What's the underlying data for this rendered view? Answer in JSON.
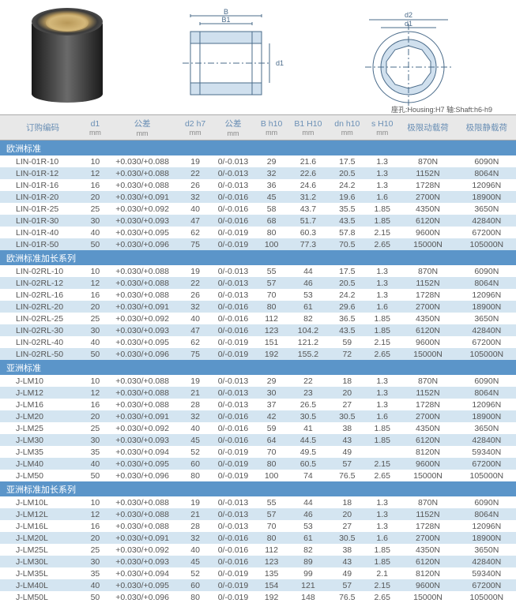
{
  "tolerance_note": "座孔:Housing:H7  轴:Shaft:h6-h9",
  "columns": [
    {
      "label": "订购编码",
      "unit": ""
    },
    {
      "label": "d1",
      "unit": "mm"
    },
    {
      "label": "公差",
      "unit": "mm"
    },
    {
      "label": "d2 h7",
      "unit": "mm"
    },
    {
      "label": "公差",
      "unit": "mm"
    },
    {
      "label": "B h10",
      "unit": "mm"
    },
    {
      "label": "B1 H10",
      "unit": "mm"
    },
    {
      "label": "dn h10",
      "unit": "mm"
    },
    {
      "label": "s H10",
      "unit": "mm"
    },
    {
      "label": "极限动载荷",
      "unit": ""
    },
    {
      "label": "极限静载荷",
      "unit": ""
    }
  ],
  "sections": [
    {
      "title": "欧洲标准",
      "rows": [
        [
          "LIN-01R-10",
          "10",
          "+0.030/+0.088",
          "19",
          "0/-0.013",
          "29",
          "21.6",
          "17.5",
          "1.3",
          "870N",
          "6090N"
        ],
        [
          "LIN-01R-12",
          "12",
          "+0.030/+0.088",
          "22",
          "0/-0.013",
          "32",
          "22.6",
          "20.5",
          "1.3",
          "1152N",
          "8064N"
        ],
        [
          "LIN-01R-16",
          "16",
          "+0.030/+0.088",
          "26",
          "0/-0.013",
          "36",
          "24.6",
          "24.2",
          "1.3",
          "1728N",
          "12096N"
        ],
        [
          "LIN-01R-20",
          "20",
          "+0.030/+0.091",
          "32",
          "0/-0.016",
          "45",
          "31.2",
          "19.6",
          "1.6",
          "2700N",
          "18900N"
        ],
        [
          "LIN-01R-25",
          "25",
          "+0.030/+0.092",
          "40",
          "0/-0.016",
          "58",
          "43.7",
          "35.5",
          "1.85",
          "4350N",
          "3650N"
        ],
        [
          "LIN-01R-30",
          "30",
          "+0.030/+0.093",
          "47",
          "0/-0.016",
          "68",
          "51.7",
          "43.5",
          "1.85",
          "6120N",
          "42840N"
        ],
        [
          "LIN-01R-40",
          "40",
          "+0.030/+0.095",
          "62",
          "0/-0.019",
          "80",
          "60.3",
          "57.8",
          "2.15",
          "9600N",
          "67200N"
        ],
        [
          "LIN-01R-50",
          "50",
          "+0.030/+0.096",
          "75",
          "0/-0.019",
          "100",
          "77.3",
          "70.5",
          "2.65",
          "15000N",
          "105000N"
        ]
      ]
    },
    {
      "title": "欧洲标准加长系列",
      "rows": [
        [
          "LIN-02RL-10",
          "10",
          "+0.030/+0.088",
          "19",
          "0/-0.013",
          "55",
          "44",
          "17.5",
          "1.3",
          "870N",
          "6090N"
        ],
        [
          "LIN-02RL-12",
          "12",
          "+0.030/+0.088",
          "22",
          "0/-0.013",
          "57",
          "46",
          "20.5",
          "1.3",
          "1152N",
          "8064N"
        ],
        [
          "LIN-02RL-16",
          "16",
          "+0.030/+0.088",
          "26",
          "0/-0.013",
          "70",
          "53",
          "24.2",
          "1.3",
          "1728N",
          "12096N"
        ],
        [
          "LIN-02RL-20",
          "20",
          "+0.030/+0.091",
          "32",
          "0/-0.016",
          "80",
          "61",
          "29.6",
          "1.6",
          "2700N",
          "18900N"
        ],
        [
          "LIN-02RL-25",
          "25",
          "+0.030/+0.092",
          "40",
          "0/-0.016",
          "112",
          "82",
          "36.5",
          "1.85",
          "4350N",
          "3650N"
        ],
        [
          "LIN-02RL-30",
          "30",
          "+0.030/+0.093",
          "47",
          "0/-0.016",
          "123",
          "104.2",
          "43.5",
          "1.85",
          "6120N",
          "42840N"
        ],
        [
          "LIN-02RL-40",
          "40",
          "+0.030/+0.095",
          "62",
          "0/-0.019",
          "151",
          "121.2",
          "59",
          "2.15",
          "9600N",
          "67200N"
        ],
        [
          "LIN-02RL-50",
          "50",
          "+0.030/+0.096",
          "75",
          "0/-0.019",
          "192",
          "155.2",
          "72",
          "2.65",
          "15000N",
          "105000N"
        ]
      ]
    },
    {
      "title": "亚洲标准",
      "rows": [
        [
          "J-LM10",
          "10",
          "+0.030/+0.088",
          "19",
          "0/-0.013",
          "29",
          "22",
          "18",
          "1.3",
          "870N",
          "6090N"
        ],
        [
          "J-LM12",
          "12",
          "+0.030/+0.088",
          "21",
          "0/-0.013",
          "30",
          "23",
          "20",
          "1.3",
          "1152N",
          "8064N"
        ],
        [
          "J-LM16",
          "16",
          "+0.030/+0.088",
          "28",
          "0/-0.013",
          "37",
          "26.5",
          "27",
          "1.3",
          "1728N",
          "12096N"
        ],
        [
          "J-LM20",
          "20",
          "+0.030/+0.091",
          "32",
          "0/-0.016",
          "42",
          "30.5",
          "30.5",
          "1.6",
          "2700N",
          "18900N"
        ],
        [
          "J-LM25",
          "25",
          "+0.030/+0.092",
          "40",
          "0/-0.016",
          "59",
          "41",
          "38",
          "1.85",
          "4350N",
          "3650N"
        ],
        [
          "J-LM30",
          "30",
          "+0.030/+0.093",
          "45",
          "0/-0.016",
          "64",
          "44.5",
          "43",
          "1.85",
          "6120N",
          "42840N"
        ],
        [
          "J-LM35",
          "35",
          "+0.030/+0.094",
          "52",
          "0/-0.019",
          "70",
          "49.5",
          "49",
          "",
          "8120N",
          "59340N"
        ],
        [
          "J-LM40",
          "40",
          "+0.030/+0.095",
          "60",
          "0/-0.019",
          "80",
          "60.5",
          "57",
          "2.15",
          "9600N",
          "67200N"
        ],
        [
          "J-LM50",
          "50",
          "+0.030/+0.096",
          "80",
          "0/-0.019",
          "100",
          "74",
          "76.5",
          "2.65",
          "15000N",
          "105000N"
        ]
      ]
    },
    {
      "title": "亚洲标准加长系列",
      "rows": [
        [
          "J-LM10L",
          "10",
          "+0.030/+0.088",
          "19",
          "0/-0.013",
          "55",
          "44",
          "18",
          "1.3",
          "870N",
          "6090N"
        ],
        [
          "J-LM12L",
          "12",
          "+0.030/+0.088",
          "21",
          "0/-0.013",
          "57",
          "46",
          "20",
          "1.3",
          "1152N",
          "8064N"
        ],
        [
          "J-LM16L",
          "16",
          "+0.030/+0.088",
          "28",
          "0/-0.013",
          "70",
          "53",
          "27",
          "1.3",
          "1728N",
          "12096N"
        ],
        [
          "J-LM20L",
          "20",
          "+0.030/+0.091",
          "32",
          "0/-0.016",
          "80",
          "61",
          "30.5",
          "1.6",
          "2700N",
          "18900N"
        ],
        [
          "J-LM25L",
          "25",
          "+0.030/+0.092",
          "40",
          "0/-0.016",
          "112",
          "82",
          "38",
          "1.85",
          "4350N",
          "3650N"
        ],
        [
          "J-LM30L",
          "30",
          "+0.030/+0.093",
          "45",
          "0/-0.016",
          "123",
          "89",
          "43",
          "1.85",
          "6120N",
          "42840N"
        ],
        [
          "J-LM35L",
          "35",
          "+0.030/+0.094",
          "52",
          "0/-0.019",
          "135",
          "99",
          "49",
          "2.1",
          "8120N",
          "59340N"
        ],
        [
          "J-LM40L",
          "40",
          "+0.030/+0.095",
          "60",
          "0/-0.019",
          "154",
          "121",
          "57",
          "2.15",
          "9600N",
          "67200N"
        ],
        [
          "J-LM50L",
          "50",
          "+0.030/+0.096",
          "80",
          "0/-0.019",
          "192",
          "148",
          "76.5",
          "2.65",
          "15000N",
          "105000N"
        ]
      ]
    }
  ],
  "diagram": {
    "labels": {
      "B": "B",
      "B1": "B1",
      "d1": "d1",
      "d2": "d2"
    },
    "stroke": "#4a6b8a",
    "fill_light": "#ffffff",
    "fill_hatch": "#c8d8e8"
  }
}
